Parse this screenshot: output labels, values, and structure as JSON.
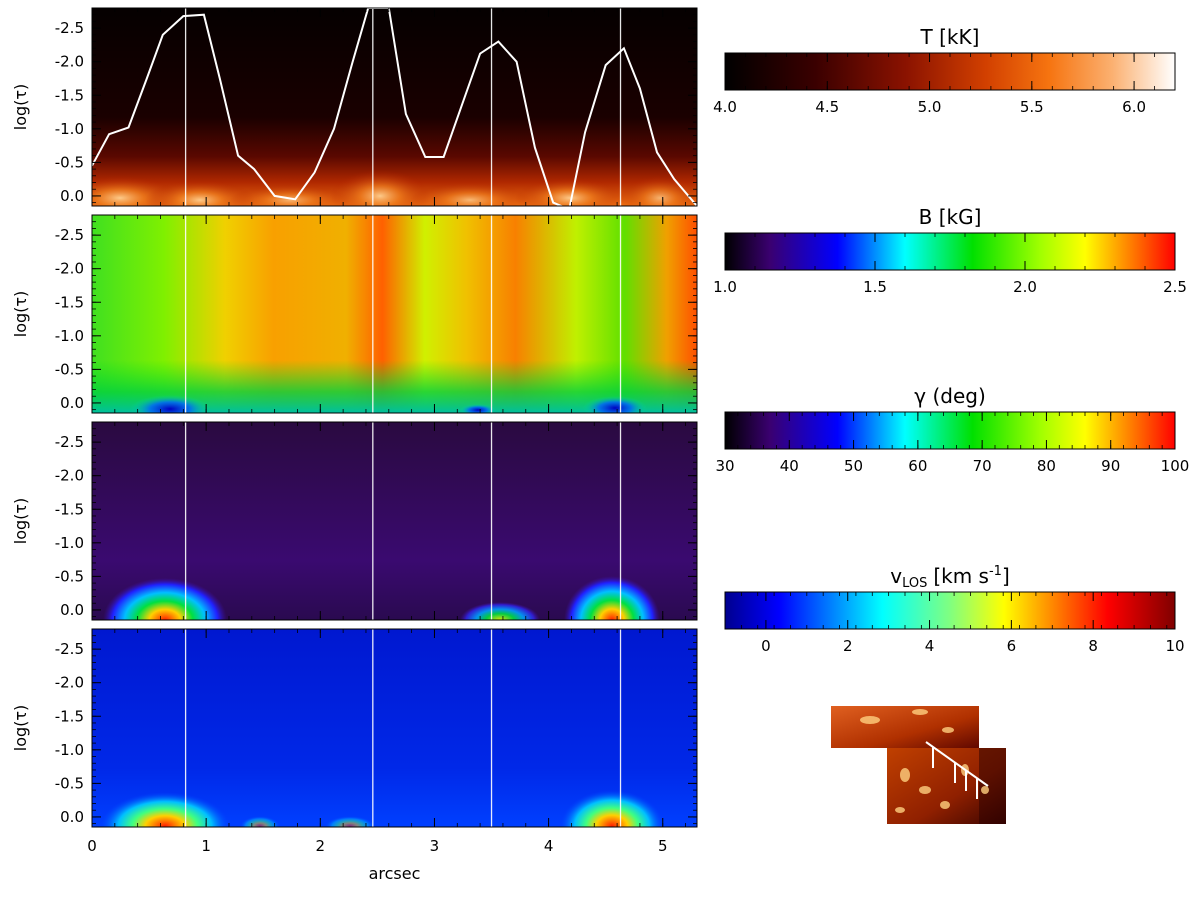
{
  "chart_data": {
    "type": "heatmap",
    "x_axis": {
      "label": "arcsec",
      "range": [
        0,
        5.3
      ],
      "ticks": [
        "0",
        "1",
        "2",
        "3",
        "4",
        "5"
      ],
      "tick_values": [
        0,
        1,
        2,
        3,
        4,
        5
      ]
    },
    "y_axis": {
      "label": "log(τ)",
      "range": [
        0.15,
        -2.8
      ],
      "ticks": [
        "-2.5",
        "-2.0",
        "-1.5",
        "-1.0",
        "-0.5",
        "0.0"
      ],
      "tick_values": [
        -2.5,
        -2.0,
        -1.5,
        -1.0,
        -0.5,
        0.0
      ]
    },
    "vertical_markers": [
      0.82,
      2.46,
      3.5,
      4.63
    ],
    "panels": [
      {
        "quantity": "temperature",
        "colormap": "heat",
        "colorbar": {
          "title": "T [kK]",
          "range": [
            4.0,
            6.2
          ],
          "ticks": [
            "4.0",
            "4.5",
            "5.0",
            "5.5",
            "6.0"
          ],
          "tick_values": [
            4.0,
            4.5,
            5.0,
            5.5,
            6.0
          ]
        },
        "overlay_line": {
          "x": [
            0,
            0.15,
            0.32,
            0.48,
            0.62,
            0.8,
            0.98,
            1.12,
            1.28,
            1.42,
            1.6,
            1.78,
            1.95,
            2.12,
            2.28,
            2.42,
            2.6,
            2.75,
            2.92,
            3.08,
            3.24,
            3.4,
            3.56,
            3.72,
            3.88,
            4.04,
            4.18,
            4.32,
            4.5,
            4.66,
            4.8,
            4.95,
            5.1,
            5.3
          ],
          "y": [
            -0.45,
            -0.92,
            -1.02,
            -1.75,
            -2.4,
            -2.68,
            -2.7,
            -1.75,
            -0.6,
            -0.4,
            0.0,
            0.05,
            -0.35,
            -1.0,
            -1.98,
            -2.8,
            -2.8,
            -1.22,
            -0.58,
            -0.58,
            -1.35,
            -2.12,
            -2.3,
            -2.0,
            -0.72,
            0.1,
            0.2,
            -0.95,
            -1.95,
            -2.2,
            -1.6,
            -0.65,
            -0.25,
            0.15
          ]
        }
      },
      {
        "quantity": "magnetic_field_strength",
        "colormap": "rainbow",
        "colorbar": {
          "title": "B [kG]",
          "range": [
            1.0,
            2.5
          ],
          "ticks": [
            "1.0",
            "1.5",
            "2.0",
            "2.5"
          ],
          "tick_values": [
            1.0,
            1.5,
            2.0,
            2.5
          ]
        }
      },
      {
        "quantity": "inclination",
        "colormap": "rainbow",
        "colorbar": {
          "title": "γ (deg)",
          "range": [
            30,
            100
          ],
          "ticks": [
            "30",
            "40",
            "50",
            "60",
            "70",
            "80",
            "90",
            "100"
          ],
          "tick_values": [
            30,
            40,
            50,
            60,
            70,
            80,
            90,
            100
          ]
        }
      },
      {
        "quantity": "line_of_sight_velocity",
        "colormap": "jet",
        "colorbar": {
          "title_main": "v",
          "title_sub": "LOS",
          "title_rest": "[km s",
          "title_sup": "-1",
          "title_end": "]",
          "range": [
            -1,
            10
          ],
          "ticks": [
            "0",
            "2",
            "4",
            "6",
            "8",
            "10"
          ],
          "tick_values": [
            0,
            2,
            4,
            6,
            8,
            10
          ]
        }
      }
    ]
  }
}
